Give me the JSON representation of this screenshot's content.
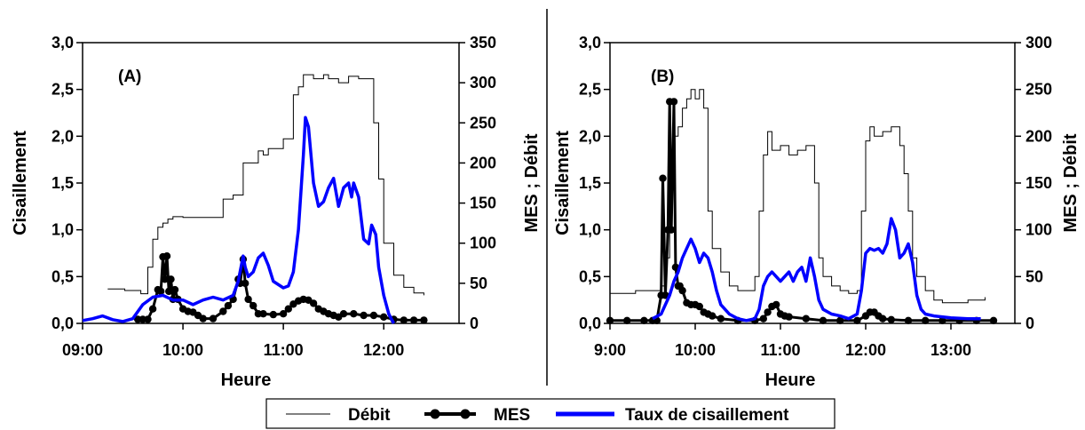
{
  "legend": {
    "items": [
      {
        "label": "Débit",
        "style": "thin-black-line",
        "color": "#000000"
      },
      {
        "label": "MES",
        "style": "black-line-with-dots",
        "color": "#000000"
      },
      {
        "label": "Taux de cisaillement",
        "style": "thick-blue-line",
        "color": "#0000ff"
      }
    ]
  },
  "colors": {
    "debit": "#000000",
    "mes": "#000000",
    "cisaillement": "#0000ff"
  },
  "chart_data": [
    {
      "type": "line",
      "panel_label": "(A)",
      "xlabel": "Heure",
      "ylabel_left": "Cisaillement",
      "ylabel_right": "MES ; Débit",
      "xlim": [
        9.0,
        12.75
      ],
      "x_ticks": [
        9.0,
        10.0,
        11.0,
        12.0
      ],
      "x_tick_labels": [
        "09:00",
        "10:00",
        "11:00",
        "12:00"
      ],
      "ylim_left": [
        0,
        3
      ],
      "y_left_ticks": [
        0,
        0.5,
        1,
        1.5,
        2,
        2.5,
        3
      ],
      "y_left_tick_labels": [
        "0,0",
        "0,5",
        "1,0",
        "1,5",
        "2,0",
        "2,5",
        "3,0"
      ],
      "ylim_right": [
        0,
        350
      ],
      "y_right_ticks": [
        0,
        50,
        100,
        150,
        200,
        250,
        300,
        350
      ],
      "y_right_tick_labels": [
        "0",
        "50",
        "100",
        "150",
        "200",
        "250",
        "300",
        "350"
      ],
      "series": [
        {
          "name": "Débit",
          "axis": "right",
          "x": [
            9.25,
            9.42,
            9.58,
            9.65,
            9.7,
            9.75,
            9.8,
            9.85,
            9.9,
            10.0,
            10.2,
            10.4,
            10.5,
            10.6,
            10.75,
            10.8,
            10.85,
            11.0,
            11.1,
            11.15,
            11.2,
            11.3,
            11.4,
            11.45,
            11.55,
            11.65,
            11.75,
            11.85,
            11.9,
            11.95,
            12.0,
            12.1,
            12.2,
            12.3,
            12.4
          ],
          "y": [
            43,
            41,
            37,
            70,
            105,
            120,
            125,
            130,
            133,
            132,
            132,
            155,
            160,
            200,
            215,
            210,
            218,
            230,
            285,
            295,
            310,
            305,
            310,
            305,
            300,
            308,
            305,
            305,
            250,
            180,
            100,
            60,
            45,
            38,
            35
          ]
        },
        {
          "name": "MES",
          "axis": "right",
          "x": [
            9.55,
            9.6,
            9.65,
            9.7,
            9.75,
            9.78,
            9.8,
            9.82,
            9.84,
            9.86,
            9.88,
            9.9,
            9.92,
            9.95,
            10.0,
            10.05,
            10.1,
            10.15,
            10.2,
            10.3,
            10.4,
            10.45,
            10.5,
            10.55,
            10.57,
            10.6,
            10.62,
            10.65,
            10.7,
            10.75,
            10.8,
            10.9,
            11.0,
            11.05,
            11.1,
            11.15,
            11.2,
            11.25,
            11.3,
            11.35,
            11.4,
            11.45,
            11.5,
            11.55,
            11.6,
            11.7,
            11.8,
            11.9,
            12.0,
            12.1,
            12.2,
            12.3,
            12.4
          ],
          "y": [
            5,
            5,
            5,
            18,
            42,
            40,
            83,
            55,
            84,
            40,
            55,
            30,
            42,
            30,
            18,
            15,
            14,
            10,
            6,
            6,
            15,
            22,
            30,
            55,
            50,
            80,
            50,
            30,
            22,
            12,
            12,
            11,
            12,
            18,
            24,
            28,
            30,
            29,
            25,
            18,
            15,
            12,
            10,
            8,
            12,
            12,
            10,
            10,
            8,
            5,
            4,
            4,
            4
          ]
        },
        {
          "name": "Taux de cisaillement",
          "axis": "left",
          "x": [
            9.0,
            9.1,
            9.2,
            9.3,
            9.4,
            9.5,
            9.6,
            9.7,
            9.8,
            9.9,
            10.0,
            10.1,
            10.2,
            10.3,
            10.4,
            10.5,
            10.55,
            10.6,
            10.62,
            10.65,
            10.7,
            10.75,
            10.8,
            10.85,
            10.9,
            11.0,
            11.05,
            11.1,
            11.15,
            11.2,
            11.22,
            11.25,
            11.3,
            11.35,
            11.4,
            11.45,
            11.5,
            11.55,
            11.6,
            11.65,
            11.68,
            11.7,
            11.75,
            11.8,
            11.85,
            11.88,
            11.92,
            11.95,
            12.0,
            12.05,
            12.1
          ],
          "y": [
            0.03,
            0.05,
            0.08,
            0.04,
            0.02,
            0.05,
            0.2,
            0.28,
            0.3,
            0.25,
            0.25,
            0.2,
            0.25,
            0.28,
            0.25,
            0.3,
            0.45,
            0.72,
            0.6,
            0.5,
            0.55,
            0.7,
            0.75,
            0.62,
            0.45,
            0.38,
            0.4,
            0.55,
            1.0,
            1.8,
            2.2,
            2.1,
            1.5,
            1.25,
            1.3,
            1.45,
            1.55,
            1.25,
            1.45,
            1.5,
            1.35,
            1.5,
            1.35,
            0.9,
            0.85,
            1.05,
            0.95,
            0.6,
            0.3,
            0.1,
            0.0
          ]
        }
      ]
    },
    {
      "type": "line",
      "panel_label": "(B)",
      "xlabel": "Heure",
      "ylabel_left": "Cisaillement",
      "ylabel_right": "MES ; Débit",
      "xlim": [
        9.0,
        13.75
      ],
      "x_ticks": [
        9.0,
        10.0,
        11.0,
        12.0,
        13.0
      ],
      "x_tick_labels": [
        "9:00",
        "10:00",
        "11:00",
        "12:00",
        "13:00"
      ],
      "ylim_left": [
        0,
        3
      ],
      "y_left_ticks": [
        0,
        0.5,
        1,
        1.5,
        2,
        2.5,
        3
      ],
      "y_left_tick_labels": [
        "0,0",
        "0,5",
        "1,0",
        "1,5",
        "2,0",
        "2,5",
        "3,0"
      ],
      "ylim_right": [
        0,
        300
      ],
      "y_right_ticks": [
        0,
        50,
        100,
        150,
        200,
        250,
        300
      ],
      "y_right_tick_labels": [
        "0",
        "50",
        "100",
        "150",
        "200",
        "250",
        "300"
      ],
      "series": [
        {
          "name": "Débit",
          "axis": "right",
          "x": [
            9.0,
            9.3,
            9.5,
            9.6,
            9.65,
            9.7,
            9.75,
            9.8,
            9.85,
            9.9,
            9.95,
            10.0,
            10.05,
            10.1,
            10.15,
            10.2,
            10.3,
            10.4,
            10.5,
            10.6,
            10.7,
            10.75,
            10.8,
            10.85,
            10.9,
            11.0,
            11.1,
            11.2,
            11.3,
            11.4,
            11.45,
            11.5,
            11.6,
            11.7,
            11.8,
            11.9,
            11.95,
            12.0,
            12.05,
            12.1,
            12.2,
            12.3,
            12.4,
            12.45,
            12.5,
            12.55,
            12.6,
            12.7,
            12.8,
            12.9,
            13.0,
            13.2,
            13.4
          ],
          "y": [
            32,
            35,
            35,
            40,
            70,
            150,
            200,
            210,
            230,
            240,
            250,
            240,
            250,
            230,
            120,
            80,
            55,
            40,
            35,
            35,
            50,
            120,
            180,
            205,
            185,
            190,
            180,
            185,
            190,
            150,
            70,
            50,
            40,
            35,
            32,
            35,
            120,
            195,
            210,
            200,
            205,
            210,
            190,
            160,
            120,
            70,
            50,
            35,
            25,
            22,
            22,
            25,
            28
          ]
        },
        {
          "name": "MES",
          "axis": "right",
          "x": [
            9.0,
            9.2,
            9.4,
            9.5,
            9.55,
            9.6,
            9.62,
            9.65,
            9.68,
            9.7,
            9.72,
            9.75,
            9.77,
            9.8,
            9.82,
            9.85,
            9.9,
            9.95,
            10.0,
            10.05,
            10.1,
            10.15,
            10.2,
            10.3,
            10.5,
            10.7,
            10.8,
            10.85,
            10.9,
            10.95,
            11.0,
            11.05,
            11.1,
            11.3,
            11.5,
            11.7,
            11.9,
            12.0,
            12.05,
            12.1,
            12.15,
            12.2,
            12.3,
            12.5,
            12.7,
            12.9,
            13.1,
            13.3,
            13.5
          ],
          "y": [
            3,
            3,
            3,
            3,
            3,
            30,
            155,
            30,
            100,
            237,
            100,
            237,
            60,
            40,
            40,
            35,
            22,
            20,
            20,
            18,
            12,
            10,
            8,
            5,
            3,
            3,
            5,
            12,
            18,
            20,
            10,
            8,
            7,
            5,
            3,
            3,
            3,
            8,
            12,
            12,
            8,
            5,
            4,
            3,
            3,
            3,
            3,
            3,
            3
          ]
        },
        {
          "name": "Taux de cisaillement",
          "axis": "left",
          "x": [
            9.5,
            9.6,
            9.7,
            9.75,
            9.8,
            9.85,
            9.9,
            9.95,
            10.0,
            10.05,
            10.1,
            10.15,
            10.2,
            10.25,
            10.3,
            10.35,
            10.4,
            10.5,
            10.6,
            10.7,
            10.75,
            10.8,
            10.85,
            10.9,
            10.95,
            11.0,
            11.05,
            11.1,
            11.15,
            11.2,
            11.25,
            11.3,
            11.35,
            11.4,
            11.45,
            11.5,
            11.6,
            11.7,
            11.8,
            11.9,
            11.95,
            12.0,
            12.05,
            12.1,
            12.15,
            12.2,
            12.25,
            12.3,
            12.35,
            12.4,
            12.45,
            12.5,
            12.55,
            12.6,
            12.65,
            12.7,
            12.8,
            13.0,
            13.2,
            13.35
          ],
          "y": [
            0.05,
            0.1,
            0.3,
            0.45,
            0.55,
            0.7,
            0.8,
            0.9,
            0.8,
            0.65,
            0.75,
            0.7,
            0.55,
            0.35,
            0.2,
            0.15,
            0.1,
            0.05,
            0.03,
            0.05,
            0.15,
            0.4,
            0.5,
            0.55,
            0.5,
            0.45,
            0.5,
            0.55,
            0.45,
            0.55,
            0.6,
            0.45,
            0.7,
            0.5,
            0.25,
            0.15,
            0.1,
            0.08,
            0.05,
            0.1,
            0.35,
            0.75,
            0.8,
            0.78,
            0.8,
            0.75,
            0.85,
            1.12,
            1.0,
            0.7,
            0.75,
            0.85,
            0.65,
            0.3,
            0.15,
            0.1,
            0.08,
            0.06,
            0.05,
            0.05
          ]
        }
      ]
    }
  ]
}
